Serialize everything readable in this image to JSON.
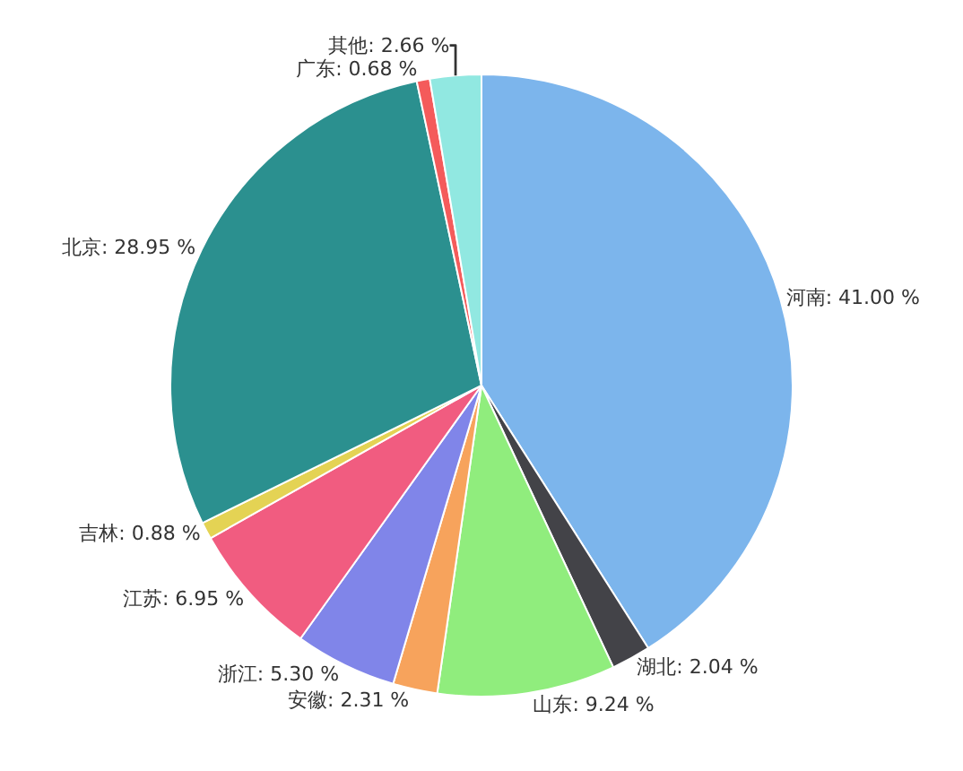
{
  "chart_data": {
    "type": "pie",
    "categories": [
      "河南",
      "湖北",
      "山东",
      "安徽",
      "浙江",
      "江苏",
      "吉林",
      "北京",
      "广东",
      "其他"
    ],
    "values": [
      41.0,
      2.04,
      9.24,
      2.31,
      5.3,
      6.95,
      0.88,
      28.95,
      0.68,
      2.66
    ],
    "value_labels": [
      "41.00 %",
      "2.04 %",
      "9.24 %",
      "2.31 %",
      "5.30 %",
      "6.95 %",
      "0.88 %",
      "28.95 %",
      "0.68 %",
      "2.66 %"
    ],
    "colors": [
      "#7cb5ec",
      "#434348",
      "#90ed7d",
      "#f7a35c",
      "#8085e9",
      "#f15c80",
      "#e4d354",
      "#2b908f",
      "#f45b5b",
      "#91e8e1"
    ],
    "legend": false
  }
}
